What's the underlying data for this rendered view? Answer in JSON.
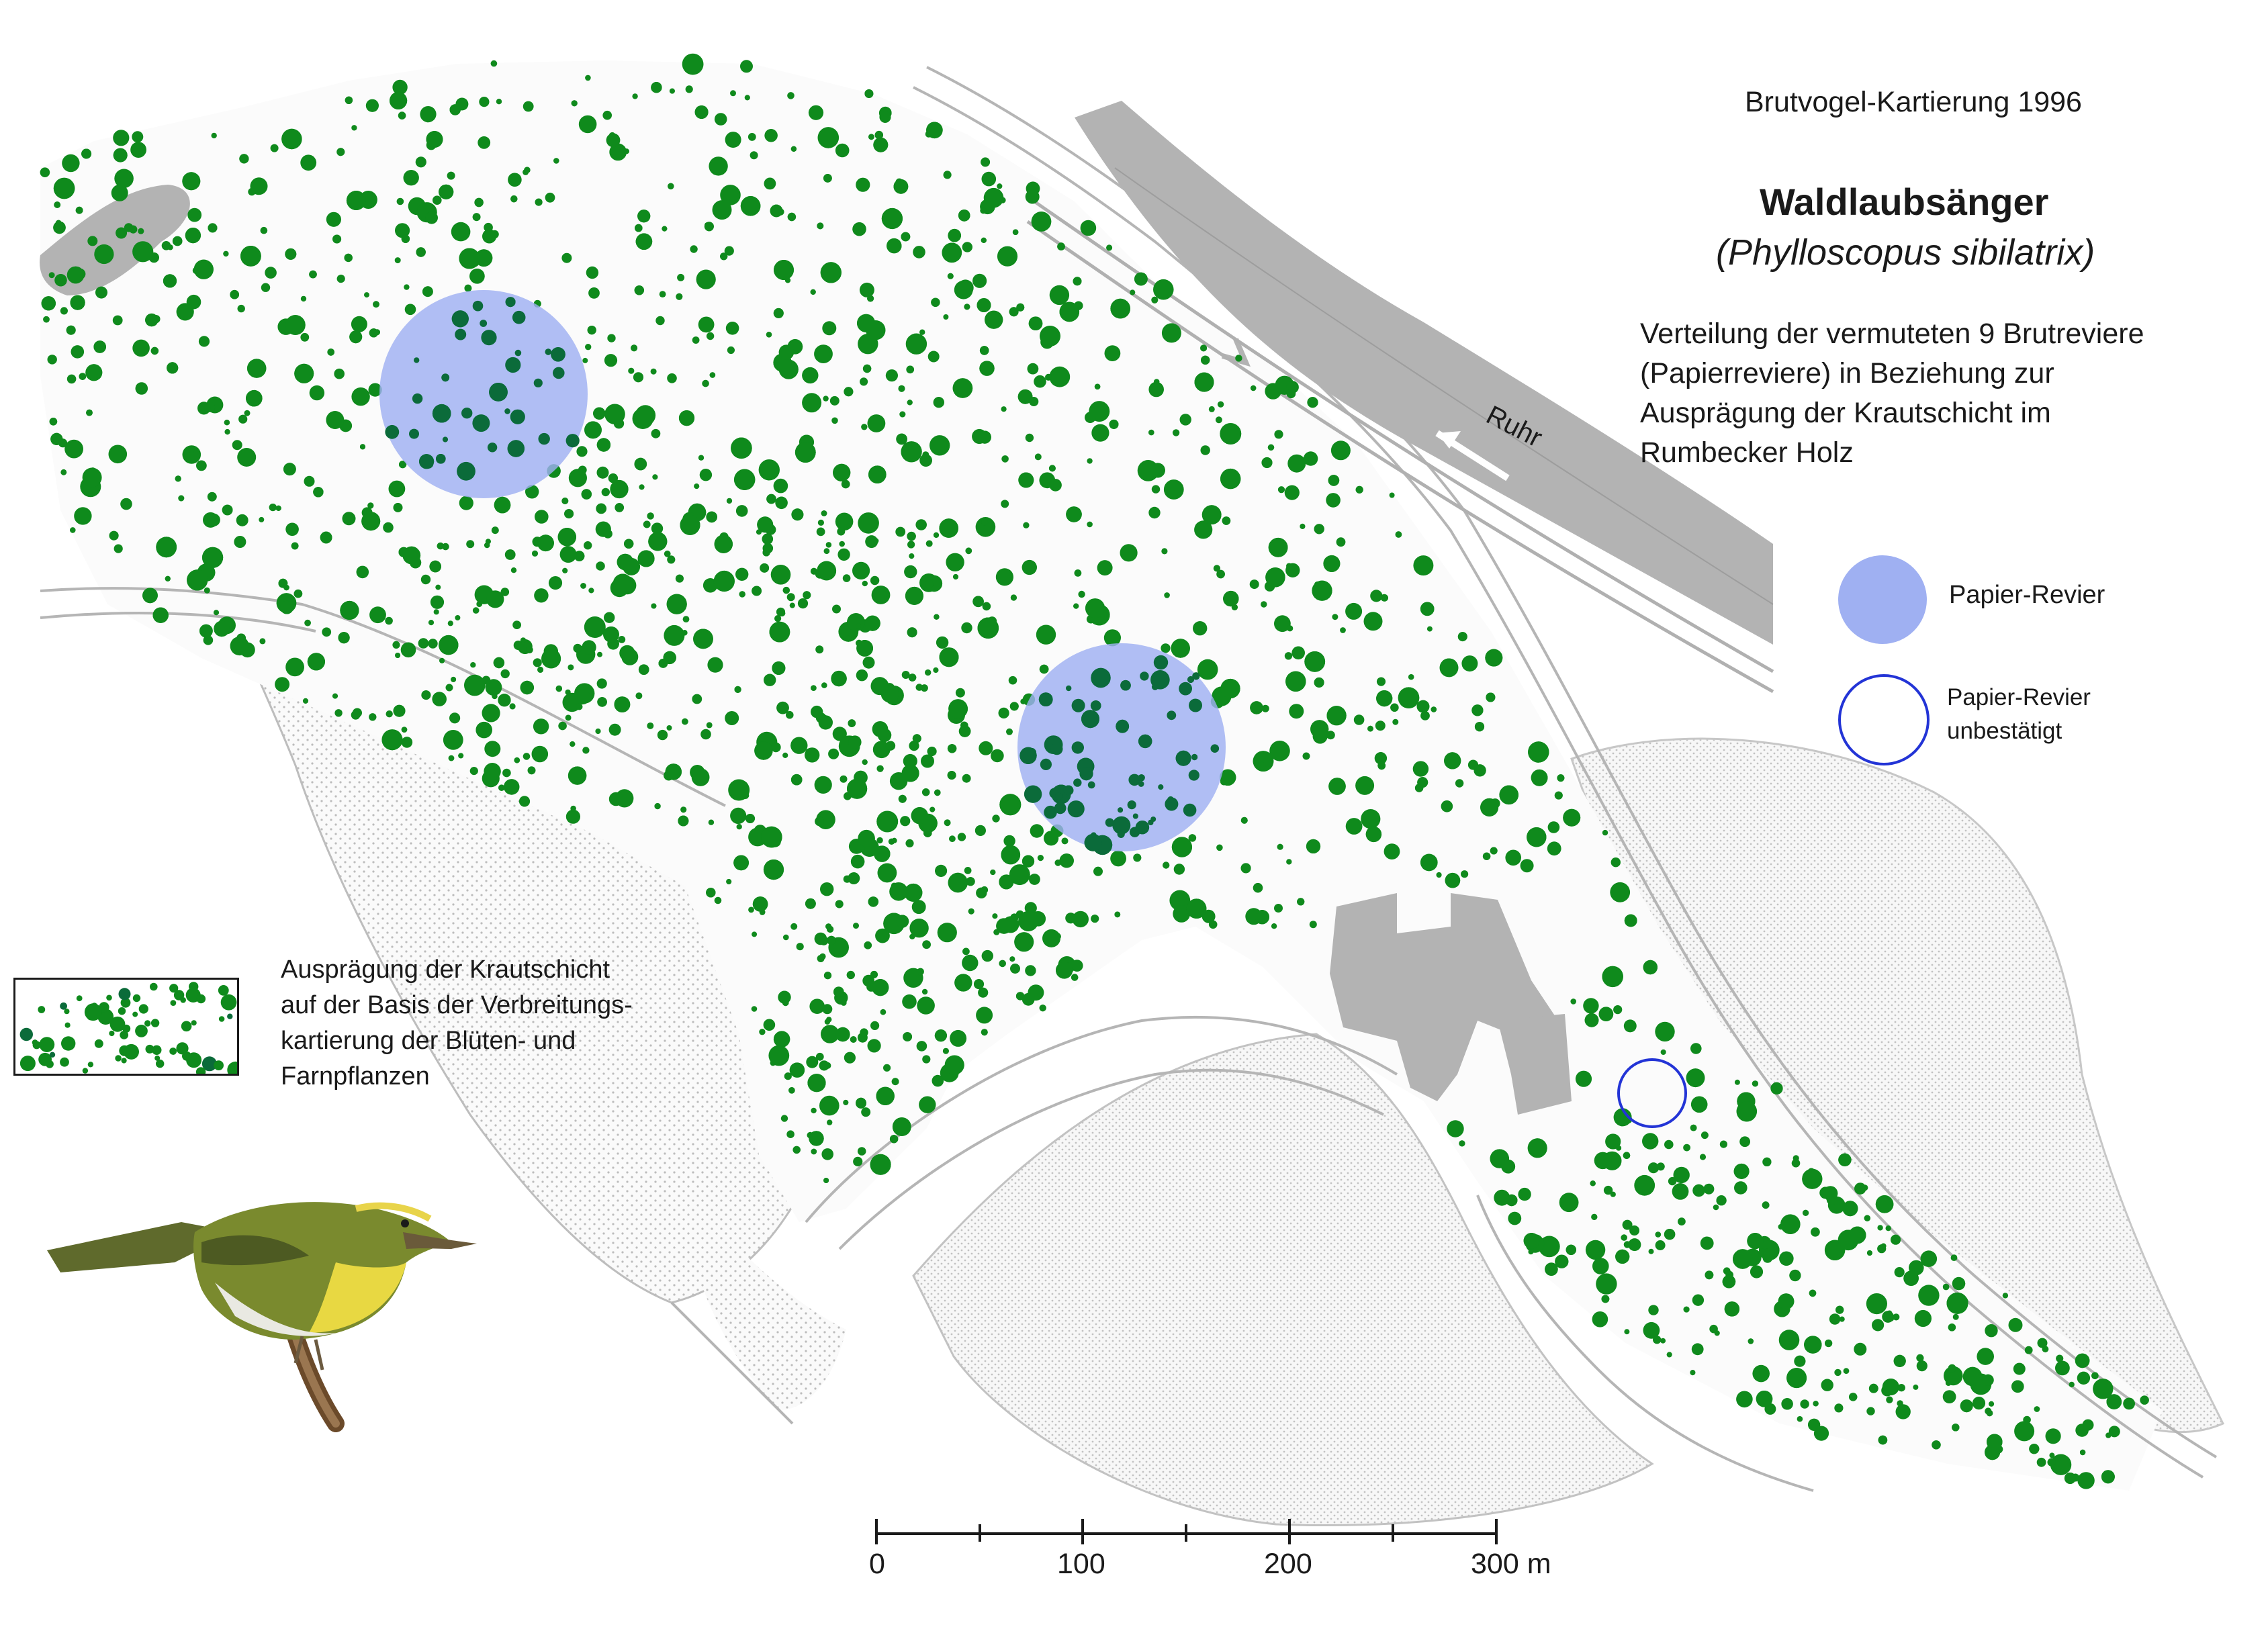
{
  "header": {
    "report_title": "Brutvogel-Kartierung 1996",
    "species_name": "Waldlaubsänger",
    "species_latin": "(Phylloscopus sibilatrix)",
    "description_lines": [
      "Verteilung der vermuteten 9 Brutreviere",
      "(Papierreviere) in Beziehung zur",
      "Ausprägung der Krautschicht im",
      "Rumbecker Holz"
    ]
  },
  "map": {
    "river_label": "Ruhr"
  },
  "legend": {
    "territory_label": "Papier-Revier",
    "unconfirmed_label_lines": [
      "Papier-Revier",
      "unbestätigt"
    ],
    "herb_layer_lines": [
      "Ausprägung der Krautschicht",
      "auf der Basis der Verbreitungs-",
      "kartierung der Blüten- und",
      "Farnpflanzen"
    ]
  },
  "scale_bar": {
    "labels": [
      "0",
      "100",
      "200",
      "300 m"
    ]
  },
  "colors": {
    "herb_dot": "#0f8a1c",
    "herb_dot_dark": "#0b6b3a",
    "territory_fill": "#9fb0f2",
    "territory_outline": "#2334d6",
    "river": "#b3b3b3",
    "buildings": "#b3b3b3",
    "open_land_stipple": "#c9c9c9",
    "path_lines": "#b8b8b8"
  }
}
